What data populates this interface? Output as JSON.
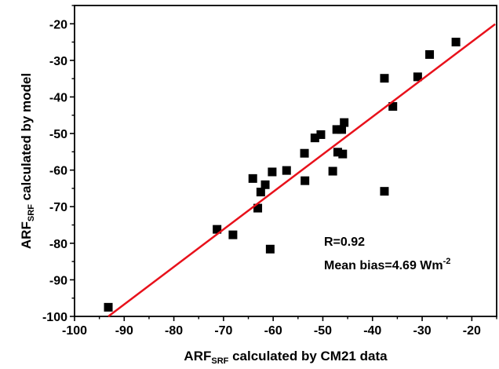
{
  "chart_data": {
    "type": "scatter",
    "xlabel": {
      "main": "ARF",
      "sub": "SRF",
      "rest": " calculated by CM21 data"
    },
    "ylabel": {
      "main": "ARF",
      "sub": "SRF",
      "rest": " calculated by model"
    },
    "xlim": [
      -100,
      -15
    ],
    "ylim": [
      -100,
      -15
    ],
    "x_ticks": [
      -100,
      -90,
      -80,
      -70,
      -60,
      -50,
      -40,
      -30,
      -20
    ],
    "y_ticks": [
      -100,
      -90,
      -80,
      -70,
      -60,
      -50,
      -40,
      -30,
      -20
    ],
    "x_tick_labels": [
      "-100",
      "-90",
      "-80",
      "-70",
      "-60",
      "-50",
      "-40",
      "-30",
      "-20"
    ],
    "y_tick_labels": [
      "-100",
      "-90",
      "-80",
      "-70",
      "-60",
      "-50",
      "-40",
      "-30",
      "-20"
    ],
    "points": [
      {
        "x": -93.2,
        "y": -97.5
      },
      {
        "x": -71.3,
        "y": -76.2
      },
      {
        "x": -68.1,
        "y": -77.7
      },
      {
        "x": -64.1,
        "y": -62.3
      },
      {
        "x": -63.1,
        "y": -70.4
      },
      {
        "x": -62.5,
        "y": -66.0
      },
      {
        "x": -61.6,
        "y": -64.0
      },
      {
        "x": -60.6,
        "y": -81.6
      },
      {
        "x": -60.2,
        "y": -60.5
      },
      {
        "x": -57.3,
        "y": -60.1
      },
      {
        "x": -53.7,
        "y": -55.4
      },
      {
        "x": -53.6,
        "y": -62.9
      },
      {
        "x": -51.6,
        "y": -51.2
      },
      {
        "x": -50.4,
        "y": -50.3
      },
      {
        "x": -48.0,
        "y": -60.3
      },
      {
        "x": -47.2,
        "y": -48.9
      },
      {
        "x": -47.0,
        "y": -55.1
      },
      {
        "x": -46.2,
        "y": -48.9
      },
      {
        "x": -46.0,
        "y": -55.6
      },
      {
        "x": -45.7,
        "y": -47.0
      },
      {
        "x": -37.6,
        "y": -34.9
      },
      {
        "x": -37.6,
        "y": -65.8
      },
      {
        "x": -35.9,
        "y": -42.6
      },
      {
        "x": -30.9,
        "y": -34.5
      },
      {
        "x": -28.5,
        "y": -28.4
      },
      {
        "x": -23.2,
        "y": -25.0
      }
    ],
    "fit_line": {
      "x": [
        -93.2,
        -15.3
      ],
      "y": [
        -100,
        -20.1
      ],
      "color": "#e8111b"
    },
    "marker_color": "#000000",
    "grid": false,
    "annotation": {
      "r_text": "R=0.92",
      "bias_text": "Mean bias=4.69 Wm",
      "bias_sup": "-2"
    }
  }
}
